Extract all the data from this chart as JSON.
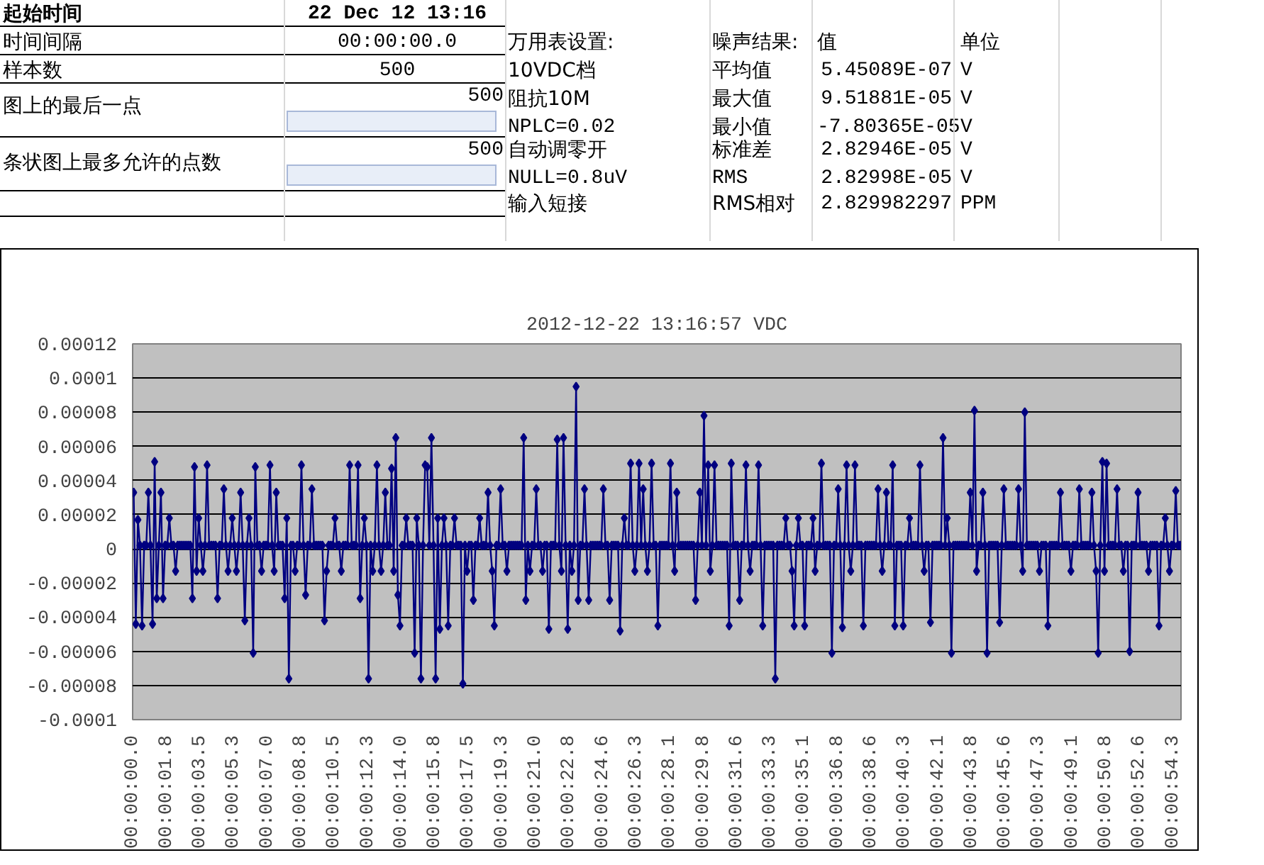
{
  "chart_data": {
    "type": "line",
    "title": "2012-12-22 13:16:57 VDC",
    "annotations": [
      "起始时间",
      "22 Dec 12 13:16",
      "时间间隔",
      "00:00:00.0",
      "万用表设置:",
      "噪声结果:",
      "值",
      "单位",
      "样本数",
      "500",
      "10VDC档",
      "平均值",
      "5.45089E-07",
      "V",
      "图上的最后一点",
      "500",
      "阻抗10M",
      "最大值",
      "9.51881E-05",
      "V",
      "NPLC=0.02",
      "最小值",
      "-7.80365E-05",
      "V",
      "条状图上最多允许的点数",
      "500",
      "自动调零开",
      "标准差",
      "2.82946E-05",
      "V",
      "NULL=0.8uV",
      "RMS",
      "2.82998E-05",
      "V",
      "输入短接",
      "RMS相对",
      "2.829982297",
      "PPM"
    ],
    "categories": [
      "00:00:00.0",
      null,
      null,
      null,
      null,
      null,
      null,
      null,
      null,
      null,
      null,
      null,
      null,
      null,
      null,
      null,
      "00:00:01.8",
      null,
      null,
      null,
      null,
      null,
      null,
      null,
      null,
      null,
      null,
      null,
      null,
      null,
      null,
      null,
      "00:00:03.5",
      null,
      null,
      null,
      null,
      null,
      null,
      null,
      null,
      null,
      null,
      null,
      null,
      null,
      null,
      null,
      "00:00:05.3",
      null,
      null,
      null,
      null,
      null,
      null,
      null,
      null,
      null,
      null,
      null,
      null,
      null,
      null,
      null,
      "00:00:07.0",
      null,
      null,
      null,
      null,
      null,
      null,
      null,
      null,
      null,
      null,
      null,
      null,
      null,
      null,
      null,
      "00:00:08.8",
      null,
      null,
      null,
      null,
      null,
      null,
      null,
      null,
      null,
      null,
      null,
      null,
      null,
      null,
      null,
      "00:00:10.5",
      null,
      null,
      null,
      null,
      null,
      null,
      null,
      null,
      null,
      null,
      null,
      null,
      null,
      null,
      null,
      "00:00:12.3",
      null,
      null,
      null,
      null,
      null,
      null,
      null,
      null,
      null,
      null,
      null,
      null,
      null,
      null,
      null,
      "00:00:14.0",
      null,
      null,
      null,
      null,
      null,
      null,
      null,
      null,
      null,
      null,
      null,
      null,
      null,
      null,
      null,
      "00:00:15.8",
      null,
      null,
      null,
      null,
      null,
      null,
      null,
      null,
      null,
      null,
      null,
      null,
      null,
      null,
      null,
      "00:00:17.5",
      null,
      null,
      null,
      null,
      null,
      null,
      null,
      null,
      null,
      null,
      null,
      null,
      null,
      null,
      null,
      "00:00:19.3",
      null,
      null,
      null,
      null,
      null,
      null,
      null,
      null,
      null,
      null,
      null,
      null,
      null,
      null,
      null,
      "00:00:21.0",
      null,
      null,
      null,
      null,
      null,
      null,
      null,
      null,
      null,
      null,
      null,
      null,
      null,
      null,
      null,
      "00:00:22.8",
      null,
      null,
      null,
      null,
      null,
      null,
      null,
      null,
      null,
      null,
      null,
      null,
      null,
      null,
      null,
      "00:00:24.6",
      null,
      null,
      null,
      null,
      null,
      null,
      null,
      null,
      null,
      null,
      null,
      null,
      null,
      null,
      null,
      "00:00:26.3",
      null,
      null,
      null,
      null,
      null,
      null,
      null,
      null,
      null,
      null,
      null,
      null,
      null,
      null,
      null,
      "00:00:28.1",
      null,
      null,
      null,
      null,
      null,
      null,
      null,
      null,
      null,
      null,
      null,
      null,
      null,
      null,
      null,
      "00:00:29.8",
      null,
      null,
      null,
      null,
      null,
      null,
      null,
      null,
      null,
      null,
      null,
      null,
      null,
      null,
      null,
      "00:00:31.6",
      null,
      null,
      null,
      null,
      null,
      null,
      null,
      null,
      null,
      null,
      null,
      null,
      null,
      null,
      null,
      "00:00:33.3",
      null,
      null,
      null,
      null,
      null,
      null,
      null,
      null,
      null,
      null,
      null,
      null,
      null,
      null,
      null,
      "00:00:35.1",
      null,
      null,
      null,
      null,
      null,
      null,
      null,
      null,
      null,
      null,
      null,
      null,
      null,
      null,
      null,
      "00:00:36.8",
      null,
      null,
      null,
      null,
      null,
      null,
      null,
      null,
      null,
      null,
      null,
      null,
      null,
      null,
      null,
      "00:00:38.6",
      null,
      null,
      null,
      null,
      null,
      null,
      null,
      null,
      null,
      null,
      null,
      null,
      null,
      null,
      null,
      "00:00:40.3",
      null,
      null,
      null,
      null,
      null,
      null,
      null,
      null,
      null,
      null,
      null,
      null,
      null,
      null,
      null,
      "00:00:42.1",
      null,
      null,
      null,
      null,
      null,
      null,
      null,
      null,
      null,
      null,
      null,
      null,
      null,
      null,
      null,
      "00:00:43.8",
      null,
      null,
      null,
      null,
      null,
      null,
      null,
      null,
      null,
      null,
      null,
      null,
      null,
      null,
      null,
      "00:00:45.6",
      null,
      null,
      null,
      null,
      null,
      null,
      null,
      null,
      null,
      null,
      null,
      null,
      null,
      null,
      null,
      "00:00:47.3",
      null,
      null,
      null,
      null,
      null,
      null,
      null,
      null,
      null,
      null,
      null,
      null,
      null,
      null,
      null,
      "00:00:49.1",
      null,
      null,
      null,
      null,
      null,
      null,
      null,
      null,
      null,
      null,
      null,
      null,
      null,
      null,
      null,
      "00:00:50.8",
      null,
      null,
      null,
      null,
      null,
      null,
      null,
      null,
      null,
      null,
      null,
      null,
      null,
      null,
      null,
      "00:00:52.6",
      null,
      null,
      null,
      null,
      null,
      null,
      null,
      null,
      null,
      null,
      null,
      null,
      null,
      null,
      null,
      "00:00:54.3",
      null,
      null,
      null
    ],
    "series": [
      {
        "color": "#000080",
        "values": [
          3.3e-05,
          -4.4e-05,
          1.7e-05,
          2e-06,
          -4.5e-05,
          2e-06,
          2e-06,
          3.3e-05,
          2e-06,
          -4.4e-05,
          5.1e-05,
          -2.9e-05,
          2e-06,
          3.3e-05,
          -2.9e-05,
          2e-06,
          2e-06,
          1.8e-05,
          2e-06,
          2e-06,
          -1.3e-05,
          2e-06,
          2e-06,
          2e-06,
          2e-06,
          2e-06,
          2e-06,
          2e-06,
          -2.9e-05,
          4.8e-05,
          -1.3e-05,
          1.8e-05,
          2e-06,
          -1.3e-05,
          2e-06,
          4.9e-05,
          2e-06,
          2e-06,
          2e-06,
          2e-06,
          -2.9e-05,
          2e-06,
          2e-06,
          3.5e-05,
          2e-06,
          -1.3e-05,
          2e-06,
          1.8e-05,
          2e-06,
          -1.3e-05,
          2e-06,
          3.3e-05,
          2e-06,
          -4.2e-05,
          2e-06,
          1.8e-05,
          2e-06,
          -6.1e-05,
          4.8e-05,
          2e-06,
          2e-06,
          -1.3e-05,
          2e-06,
          2e-06,
          2e-06,
          4.9e-05,
          2e-06,
          -1.3e-05,
          3.3e-05,
          2e-06,
          2e-06,
          2e-06,
          -2.9e-05,
          1.8e-05,
          -7.6e-05,
          2e-06,
          2e-06,
          -1.3e-05,
          2e-06,
          2e-06,
          4.9e-05,
          2e-06,
          -2.7e-05,
          2e-06,
          2e-06,
          3.5e-05,
          2e-06,
          2e-06,
          2e-06,
          2e-06,
          2e-06,
          -4.2e-05,
          -1.3e-05,
          2e-06,
          2e-06,
          2e-06,
          1.8e-05,
          2e-06,
          2e-06,
          -1.3e-05,
          2e-06,
          2e-06,
          2e-06,
          4.9e-05,
          2e-06,
          2e-06,
          2e-06,
          4.9e-05,
          -2.9e-05,
          2e-06,
          1.8e-05,
          2e-06,
          -7.6e-05,
          2e-06,
          -1.3e-05,
          2e-06,
          4.9e-05,
          2e-06,
          -1.3e-05,
          2e-06,
          3.3e-05,
          2e-06,
          2e-06,
          4.7e-05,
          -1.3e-05,
          6.5e-05,
          -2.7e-05,
          -4.5e-05,
          2e-06,
          2e-06,
          1.8e-05,
          2e-06,
          2e-06,
          2e-06,
          -6.1e-05,
          1.8e-05,
          2e-06,
          -7.6e-05,
          2e-06,
          4.9e-05,
          4.8e-05,
          2e-06,
          6.5e-05,
          2e-06,
          -7.6e-05,
          1.8e-05,
          -4.7e-05,
          2e-06,
          1.8e-05,
          2e-06,
          -4.5e-05,
          2e-06,
          2e-06,
          1.8e-05,
          2e-06,
          2e-06,
          2e-06,
          -7.9e-05,
          2e-06,
          -1.3e-05,
          2e-06,
          2e-06,
          -3e-05,
          2e-06,
          2e-06,
          1.8e-05,
          2e-06,
          2e-06,
          2e-06,
          3.3e-05,
          2e-06,
          -1.3e-05,
          -4.5e-05,
          2e-06,
          2e-06,
          3.5e-05,
          2e-06,
          2e-06,
          -1.3e-05,
          2e-06,
          2e-06,
          2e-06,
          2e-06,
          2e-06,
          2e-06,
          2e-06,
          6.5e-05,
          -3e-05,
          2e-06,
          -1.3e-05,
          2e-06,
          2e-06,
          3.5e-05,
          2e-06,
          2e-06,
          -1.3e-05,
          2e-06,
          2e-06,
          -4.7e-05,
          2e-06,
          2e-06,
          2e-06,
          6.4e-05,
          2e-06,
          -1.3e-05,
          6.5e-05,
          2e-06,
          -4.7e-05,
          2e-06,
          -1.3e-05,
          2e-06,
          9.5e-05,
          -3e-05,
          2e-06,
          2e-06,
          3.5e-05,
          2e-06,
          -3e-05,
          2e-06,
          2e-06,
          2e-06,
          2e-06,
          2e-06,
          2e-06,
          3.5e-05,
          2e-06,
          2e-06,
          -3e-05,
          2e-06,
          2e-06,
          2e-06,
          2e-06,
          -4.8e-05,
          2e-06,
          1.8e-05,
          2e-06,
          2e-06,
          5e-05,
          2e-06,
          -1.3e-05,
          2e-06,
          5e-05,
          2e-06,
          3.5e-05,
          2e-06,
          -1.3e-05,
          2e-06,
          5e-05,
          2e-06,
          2e-06,
          -4.5e-05,
          2e-06,
          2e-06,
          2e-06,
          2e-06,
          2e-06,
          5e-05,
          2e-06,
          -1.3e-05,
          3.3e-05,
          2e-06,
          2e-06,
          2e-06,
          2e-06,
          2e-06,
          2e-06,
          2e-06,
          2e-06,
          -3e-05,
          2e-06,
          3.3e-05,
          2e-06,
          7.8e-05,
          2e-06,
          4.9e-05,
          -1.3e-05,
          2e-06,
          4.9e-05,
          2e-06,
          2e-06,
          2e-06,
          2e-06,
          2e-06,
          2e-06,
          -4.5e-05,
          5e-05,
          2e-06,
          2e-06,
          2e-06,
          -3e-05,
          2e-06,
          2e-06,
          4.9e-05,
          2e-06,
          -1.3e-05,
          2e-06,
          2e-06,
          2e-06,
          4.9e-05,
          2e-06,
          -4.5e-05,
          2e-06,
          2e-06,
          2e-06,
          2e-06,
          2e-06,
          -7.6e-05,
          2e-06,
          2e-06,
          2e-06,
          2e-06,
          1.8e-05,
          2e-06,
          2e-06,
          -1.3e-05,
          -4.5e-05,
          2e-06,
          1.8e-05,
          2e-06,
          2e-06,
          -4.5e-05,
          2e-06,
          2e-06,
          2e-06,
          1.8e-05,
          -1.3e-05,
          2e-06,
          2e-06,
          5e-05,
          2e-06,
          2e-06,
          2e-06,
          2e-06,
          -6.1e-05,
          2e-06,
          2e-06,
          3.5e-05,
          2e-06,
          -4.6e-05,
          2e-06,
          4.9e-05,
          2e-06,
          -1.3e-05,
          2e-06,
          4.9e-05,
          2e-06,
          2e-06,
          2e-06,
          -4.5e-05,
          2e-06,
          2e-06,
          2e-06,
          2e-06,
          2e-06,
          2e-06,
          3.5e-05,
          2e-06,
          -1.3e-05,
          2e-06,
          3.3e-05,
          2e-06,
          2e-06,
          4.9e-05,
          -4.5e-05,
          2e-06,
          2e-06,
          2e-06,
          -4.5e-05,
          2e-06,
          2e-06,
          1.8e-05,
          2e-06,
          2e-06,
          2e-06,
          2e-06,
          4.9e-05,
          2e-06,
          -1.3e-05,
          2e-06,
          2e-06,
          -4.3e-05,
          2e-06,
          2e-06,
          2e-06,
          2e-06,
          2e-06,
          6.5e-05,
          2e-06,
          1.8e-05,
          2e-06,
          -6.1e-05,
          2e-06,
          2e-06,
          2e-06,
          2e-06,
          2e-06,
          2e-06,
          2e-06,
          2e-06,
          3.3e-05,
          2e-06,
          8.1e-05,
          -1.3e-05,
          2e-06,
          2e-06,
          3.3e-05,
          2e-06,
          -6.1e-05,
          2e-06,
          2e-06,
          2e-06,
          2e-06,
          2e-06,
          -4.3e-05,
          2e-06,
          3.5e-05,
          2e-06,
          2e-06,
          2e-06,
          2e-06,
          2e-06,
          2e-06,
          3.5e-05,
          2e-06,
          -1.3e-05,
          8e-05,
          2e-06,
          2e-06,
          2e-06,
          2e-06,
          2e-06,
          2e-06,
          -1.3e-05,
          2e-06,
          2e-06,
          2e-06,
          -4.5e-05,
          2e-06,
          2e-06,
          2e-06,
          2e-06,
          2e-06,
          3.3e-05,
          2e-06,
          2e-06,
          2e-06,
          2e-06,
          -1.3e-05,
          2e-06,
          2e-06,
          2e-06,
          3.5e-05,
          2e-06,
          2e-06,
          2e-06,
          2e-06,
          2e-06,
          3.3e-05,
          2e-06,
          -1.3e-05,
          -6.1e-05,
          2e-06,
          5.1e-05,
          -1.3e-05,
          5e-05,
          2e-06,
          2e-06,
          2e-06,
          2e-06,
          3.5e-05,
          2e-06,
          2e-06,
          -1.3e-05,
          2e-06,
          2e-06,
          -6e-05,
          2e-06,
          2e-06,
          2e-06,
          3.3e-05,
          2e-06,
          2e-06,
          2e-06,
          2e-06,
          -1.3e-05,
          2e-06,
          2e-06,
          2e-06,
          2e-06,
          -4.5e-05,
          2e-06,
          2e-06,
          1.8e-05,
          2e-06,
          -1.3e-05,
          2e-06,
          2e-06,
          3.4e-05,
          2e-06,
          2e-06
        ]
      }
    ],
    "ylim": [
      -0.0001,
      0.00012
    ],
    "yticks": [
      {
        "value": -0.0001,
        "label": "-0.0001"
      },
      {
        "value": -8e-05,
        "label": "-0.00008"
      },
      {
        "value": -6e-05,
        "label": "-0.00006"
      },
      {
        "value": -4e-05,
        "label": "-0.00004"
      },
      {
        "value": -2e-05,
        "label": "-0.00002"
      },
      {
        "value": 0,
        "label": "0"
      },
      {
        "value": 2e-05,
        "label": "0.00002"
      },
      {
        "value": 4e-05,
        "label": "0.00004"
      },
      {
        "value": 6e-05,
        "label": "0.00006"
      },
      {
        "value": 8e-05,
        "label": "0.00008"
      },
      {
        "value": 0.0001,
        "label": "0.0001"
      },
      {
        "value": 0.00012,
        "label": "0.00012"
      }
    ],
    "grid": "y",
    "marker": "diamond",
    "line_style": "solid"
  }
}
